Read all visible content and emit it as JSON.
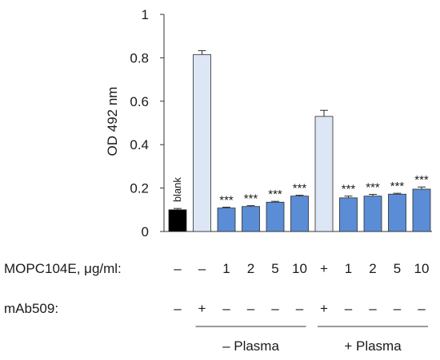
{
  "chart_data": {
    "type": "bar",
    "ylabel": "OD 492 nm",
    "ylim": [
      0,
      1
    ],
    "yticks": [
      "0",
      "0.2",
      "0.4",
      "0.6",
      "0.8",
      "1"
    ],
    "bars": [
      {
        "value": 0.1,
        "error": 0.006,
        "color": "#000000",
        "label": "blank",
        "sig": ""
      },
      {
        "value": 0.815,
        "error": 0.018,
        "color": "#dce6f5",
        "label": "",
        "sig": ""
      },
      {
        "value": 0.108,
        "error": 0.004,
        "color": "#5b8dd6",
        "label": "",
        "sig": "***"
      },
      {
        "value": 0.115,
        "error": 0.004,
        "color": "#5b8dd6",
        "label": "",
        "sig": "***"
      },
      {
        "value": 0.135,
        "error": 0.004,
        "color": "#5b8dd6",
        "label": "",
        "sig": "***"
      },
      {
        "value": 0.163,
        "error": 0.004,
        "color": "#5b8dd6",
        "label": "",
        "sig": "***"
      },
      {
        "value": 0.53,
        "error": 0.028,
        "color": "#dce6f5",
        "label": "",
        "sig": ""
      },
      {
        "value": 0.155,
        "error": 0.008,
        "color": "#5b8dd6",
        "label": "",
        "sig": "***"
      },
      {
        "value": 0.163,
        "error": 0.008,
        "color": "#5b8dd6",
        "label": "",
        "sig": "***"
      },
      {
        "value": 0.172,
        "error": 0.004,
        "color": "#5b8dd6",
        "label": "",
        "sig": "***"
      },
      {
        "value": 0.195,
        "error": 0.01,
        "color": "#5b8dd6",
        "label": "",
        "sig": "***"
      }
    ],
    "rows": [
      {
        "label": "MOPC104E,  μg/ml:",
        "values": [
          "–",
          "–",
          "1",
          "2",
          "5",
          "10",
          "+",
          "1",
          "2",
          "5",
          "10"
        ]
      },
      {
        "label": "mAb509:",
        "values": [
          "–",
          "+",
          "–",
          "–",
          "–",
          "–",
          "+",
          "–",
          "–",
          "–",
          "–"
        ]
      }
    ],
    "groups": [
      {
        "label": "– Plasma",
        "from": 1,
        "to": 5
      },
      {
        "label": "+ Plasma",
        "from": 6,
        "to": 10
      }
    ]
  }
}
